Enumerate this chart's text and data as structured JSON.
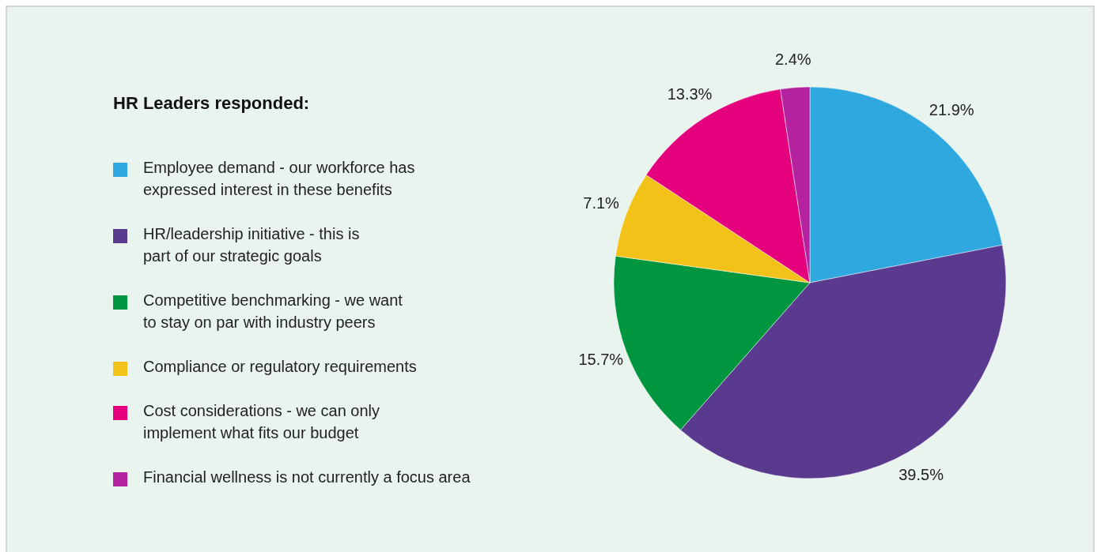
{
  "chart_data": {
    "type": "pie",
    "legend_title": "HR Leaders responded:",
    "categories": [
      "Employee demand - our workforce has expressed interest in these benefits",
      "HR/leadership initiative - this is part of our strategic goals",
      "Competitive benchmarking - we want to stay on par with industry peers",
      "Compliance or regulatory requirements",
      "Cost considerations - we can only implement what fits our budget",
      "Financial wellness is not currently a focus area"
    ],
    "values": [
      21.9,
      39.5,
      15.7,
      7.1,
      13.3,
      2.4
    ],
    "colors": [
      "#2fa8df",
      "#5a3a8e",
      "#00963f",
      "#f2c218",
      "#e5007d",
      "#b5229f"
    ],
    "value_labels": [
      "21.9%",
      "39.5%",
      "15.7%",
      "7.1%",
      "13.3%",
      "2.4%"
    ],
    "legend": "left"
  }
}
